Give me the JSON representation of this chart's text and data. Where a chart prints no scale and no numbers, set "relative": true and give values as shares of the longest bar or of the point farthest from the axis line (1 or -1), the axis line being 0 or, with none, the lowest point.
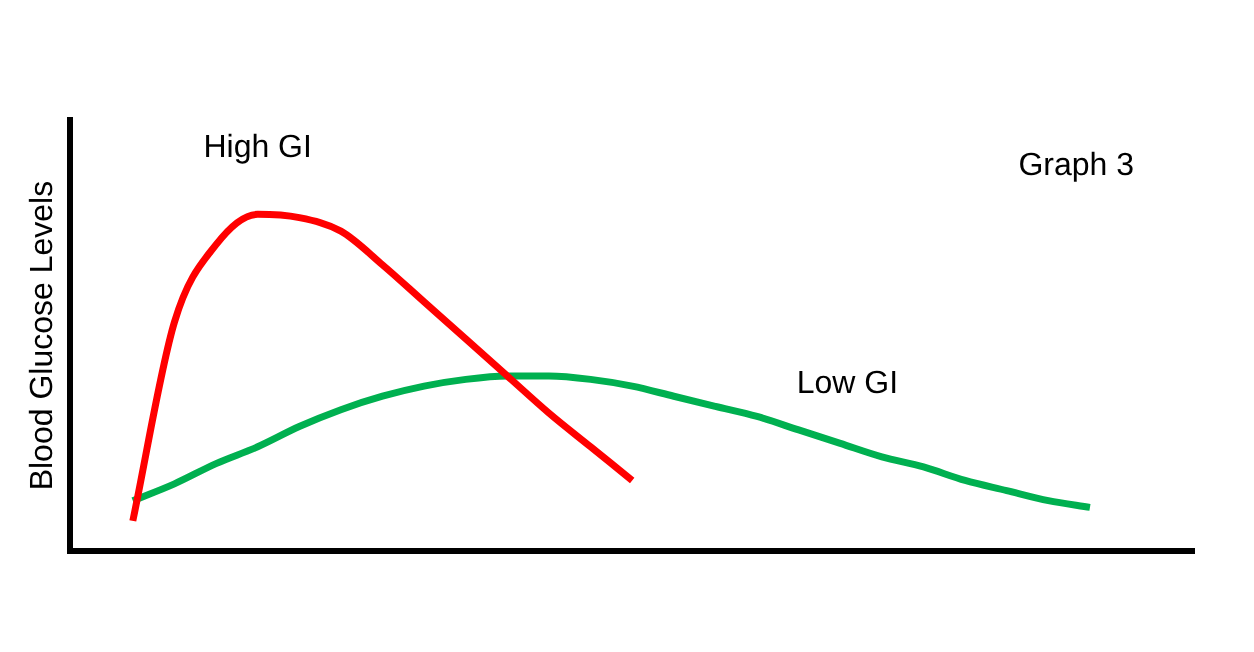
{
  "chart_data": {
    "type": "line",
    "relative": true,
    "ylabel": "Blood Glucose Levels",
    "annotations": [
      "Graph 3"
    ],
    "grid": false,
    "legend": false,
    "marker": "none",
    "line_style": "solid",
    "categories": [
      null,
      null,
      null,
      null,
      null,
      null,
      null,
      null,
      null,
      null,
      null,
      null,
      null,
      null,
      null,
      null,
      null,
      null,
      null,
      null,
      null,
      null,
      null,
      null,
      null,
      null,
      null
    ],
    "series": [
      {
        "name": "High GI",
        "color": "#ff0000",
        "values": [
          null,
          0.09,
          0.68,
          0.91,
          1.0,
          0.99,
          0.95,
          0.85,
          0.74,
          0.63,
          0.52,
          0.41,
          0.31,
          0.21,
          null,
          null,
          null,
          null,
          null,
          null,
          null,
          null,
          null,
          null,
          null,
          null,
          null
        ]
      },
      {
        "name": "Low GI",
        "color": "#00b050",
        "values": [
          null,
          0.15,
          0.2,
          0.26,
          0.31,
          0.37,
          0.42,
          0.46,
          0.49,
          0.51,
          0.52,
          0.52,
          0.51,
          0.49,
          0.46,
          0.43,
          0.4,
          0.36,
          0.32,
          0.28,
          0.25,
          0.21,
          0.18,
          0.15,
          0.13,
          null,
          null
        ]
      }
    ]
  }
}
